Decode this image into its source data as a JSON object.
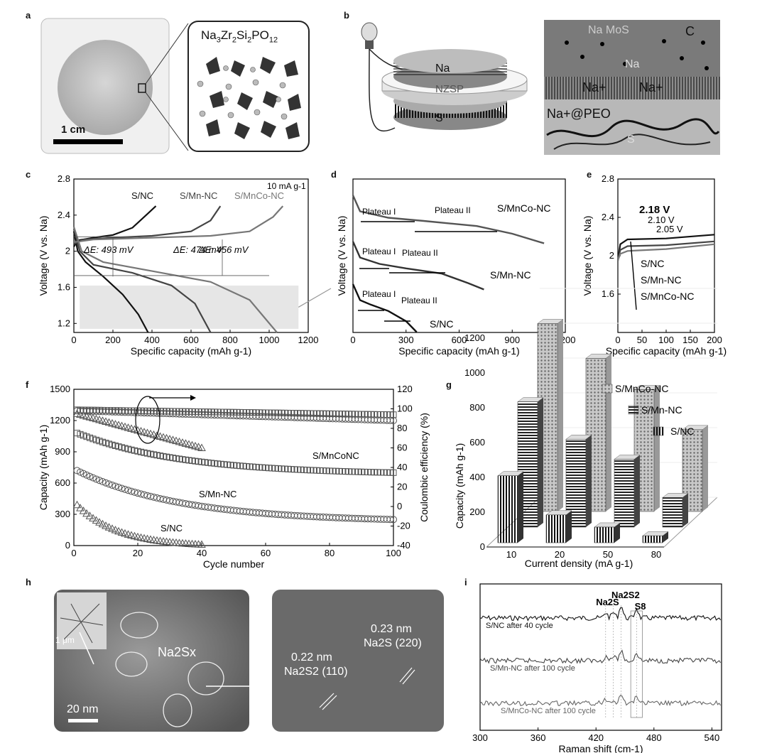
{
  "panels": {
    "a": "a",
    "b": "b",
    "c": "c",
    "d": "d",
    "e": "e",
    "f": "f",
    "g": "g",
    "h": "h",
    "i": "i"
  },
  "panel_a": {
    "formula_parts": [
      "Na",
      "3",
      "Zr",
      "2",
      "Si",
      "2",
      "PO",
      "12"
    ],
    "scale_bar": "1 cm"
  },
  "panel_b": {
    "layers": [
      "Na",
      "NZSP",
      "S"
    ],
    "schematic_labels": [
      "Na MoS",
      "C",
      "Na",
      "Na+",
      "Na+",
      "Na+@PEO",
      "S"
    ]
  },
  "panel_h": {
    "inset_scale": "1 μm",
    "label_nasx": "Na2Sx",
    "scale_bar": "20 nm",
    "spacing1": "0.23 nm",
    "plane1": "Na2S (220)",
    "spacing2": "0.22 nm",
    "plane2": "Na2S2 (110)"
  },
  "chart_data": [
    {
      "id": "c",
      "type": "line",
      "xlabel": "Specific capacity (mAh g-1)",
      "ylabel": "Voltage (V vs. Na)",
      "xlim": [
        0,
        1200
      ],
      "ylim": [
        1.1,
        2.8
      ],
      "xticks": [
        0,
        200,
        400,
        600,
        800,
        1000,
        1200
      ],
      "yticks": [
        1.2,
        1.6,
        2.0,
        2.4,
        2.8
      ],
      "annotation_rate": "10 mA g-1",
      "deltaE": [
        "ΔE: 493 mV",
        "ΔE: 474 mV",
        "ΔE: 456 mV"
      ],
      "series": [
        {
          "name": "S/NC",
          "color": "#111111",
          "charge": [
            [
              0,
              2.05
            ],
            [
              20,
              2.12
            ],
            [
              100,
              2.15
            ],
            [
              200,
              2.18
            ],
            [
              300,
              2.26
            ],
            [
              380,
              2.42
            ],
            [
              420,
              2.5
            ]
          ],
          "discharge": [
            [
              0,
              2.22
            ],
            [
              20,
              2.0
            ],
            [
              60,
              1.88
            ],
            [
              150,
              1.72
            ],
            [
              250,
              1.52
            ],
            [
              330,
              1.3
            ],
            [
              380,
              1.1
            ]
          ]
        },
        {
          "name": "S/Mn-NC",
          "color": "#444444",
          "charge": [
            [
              0,
              2.08
            ],
            [
              50,
              2.13
            ],
            [
              200,
              2.15
            ],
            [
              400,
              2.17
            ],
            [
              600,
              2.22
            ],
            [
              700,
              2.34
            ],
            [
              750,
              2.5
            ]
          ],
          "discharge": [
            [
              0,
              2.25
            ],
            [
              30,
              2.0
            ],
            [
              100,
              1.85
            ],
            [
              300,
              1.76
            ],
            [
              500,
              1.62
            ],
            [
              620,
              1.42
            ],
            [
              700,
              1.1
            ]
          ]
        },
        {
          "name": "S/MnCo-NC",
          "color": "#777777",
          "charge": [
            [
              0,
              2.1
            ],
            [
              100,
              2.13
            ],
            [
              400,
              2.15
            ],
            [
              700,
              2.17
            ],
            [
              900,
              2.22
            ],
            [
              1020,
              2.38
            ],
            [
              1070,
              2.5
            ]
          ],
          "discharge": [
            [
              0,
              2.27
            ],
            [
              40,
              2.0
            ],
            [
              150,
              1.88
            ],
            [
              400,
              1.78
            ],
            [
              700,
              1.66
            ],
            [
              900,
              1.46
            ],
            [
              1040,
              1.1
            ]
          ]
        }
      ]
    },
    {
      "id": "d",
      "type": "line",
      "xlabel": "Specific capacity (mAh g-1)",
      "ylabel": "Voltage (V vs. Na)",
      "xlim": [
        0,
        1200
      ],
      "xticks": [
        0,
        300,
        600,
        900,
        1200
      ],
      "plateau_labels": [
        "Plateau I",
        "Plateau II"
      ],
      "series": [
        {
          "name": "S/MnCo-NC",
          "values": [
            [
              0,
              2.6
            ],
            [
              40,
              2.35
            ],
            [
              200,
              2.25
            ],
            [
              400,
              2.2
            ],
            [
              700,
              2.12
            ],
            [
              900,
              2.0
            ],
            [
              1080,
              1.85
            ]
          ]
        },
        {
          "name": "S/Mn-NC",
          "values": [
            [
              0,
              2.6
            ],
            [
              40,
              2.35
            ],
            [
              150,
              2.25
            ],
            [
              300,
              2.18
            ],
            [
              500,
              2.1
            ],
            [
              650,
              1.95
            ],
            [
              740,
              1.85
            ]
          ]
        },
        {
          "name": "S/NC",
          "values": [
            [
              0,
              2.6
            ],
            [
              40,
              2.35
            ],
            [
              100,
              2.28
            ],
            [
              200,
              2.18
            ],
            [
              300,
              2.02
            ],
            [
              360,
              1.85
            ]
          ]
        }
      ]
    },
    {
      "id": "e",
      "type": "line",
      "xlabel": "Specific capacity (mAh g-1)",
      "ylabel": "Voltage (V vs. Na)",
      "xlim": [
        0,
        200
      ],
      "ylim": [
        1.2,
        2.8
      ],
      "xticks": [
        0,
        50,
        100,
        150,
        200
      ],
      "yticks": [
        1.6,
        2.0,
        2.4,
        2.8
      ],
      "annotations": [
        "2.18 V",
        "2.10 V",
        "2.05 V"
      ],
      "series": [
        {
          "name": "S/NC",
          "values": [
            [
              0,
              1.95
            ],
            [
              5,
              2.12
            ],
            [
              20,
              2.17
            ],
            [
              100,
              2.18
            ],
            [
              200,
              2.22
            ]
          ]
        },
        {
          "name": "S/Mn-NC",
          "values": [
            [
              0,
              1.95
            ],
            [
              5,
              2.06
            ],
            [
              20,
              2.1
            ],
            [
              100,
              2.11
            ],
            [
              200,
              2.15
            ]
          ]
        },
        {
          "name": "S/MnCo-NC",
          "values": [
            [
              0,
              1.95
            ],
            [
              5,
              2.02
            ],
            [
              20,
              2.05
            ],
            [
              100,
              2.07
            ],
            [
              200,
              2.12
            ]
          ]
        }
      ]
    },
    {
      "id": "f",
      "type": "scatter",
      "xlabel": "Cycle number",
      "ylabel": "Capacity (mAh g-1)",
      "y2label": "Coulombic efficiency (%)",
      "xlim": [
        0,
        100
      ],
      "ylim": [
        0,
        1500
      ],
      "y2lim": [
        -40,
        120
      ],
      "xticks": [
        0,
        20,
        40,
        60,
        80,
        100
      ],
      "yticks": [
        0,
        300,
        600,
        900,
        1200,
        1500
      ],
      "y2ticks": [
        -40,
        -20,
        0,
        20,
        40,
        60,
        80,
        100,
        120
      ],
      "series": [
        {
          "name": "S/MnCoNC",
          "marker": "square",
          "start": 1080,
          "end": 700,
          "cycles": 100
        },
        {
          "name": "S/Mn-NC",
          "marker": "circle",
          "start": 720,
          "end": 250,
          "cycles": 100
        },
        {
          "name": "S/NC",
          "marker": "triangle",
          "start": 390,
          "end": 10,
          "cycles": 40
        }
      ],
      "efficiency": [
        {
          "marker": "square",
          "start": 99,
          "end": 94,
          "cycles": 100
        },
        {
          "marker": "circle",
          "start": 98,
          "end": 88,
          "cycles": 100
        },
        {
          "marker": "triangle",
          "start": 95,
          "end": 60,
          "cycles": 40
        }
      ]
    },
    {
      "id": "g",
      "type": "bar",
      "xlabel": "Current density (mA g-1)",
      "ylabel": "Capacity (mAh g-1)",
      "categories": [
        "10",
        "20",
        "50",
        "80"
      ],
      "yticks": [
        0,
        200,
        400,
        600,
        800,
        1000,
        1200
      ],
      "series": [
        {
          "name": "S/NC",
          "values": [
            385,
            160,
            90,
            40
          ]
        },
        {
          "name": "S/Mn-NC",
          "values": [
            720,
            505,
            390,
            170
          ]
        },
        {
          "name": "S/MnCo-NC",
          "values": [
            1080,
            880,
            700,
            470
          ]
        }
      ]
    },
    {
      "id": "i",
      "type": "line",
      "xlabel": "Raman shift (cm-1)",
      "xlim": [
        300,
        550
      ],
      "xticks": [
        300,
        360,
        420,
        480,
        540
      ],
      "peak_labels": [
        "Na2S",
        "Na2S2",
        "S8"
      ],
      "series": [
        {
          "name": "S/NC after 40 cycle"
        },
        {
          "name": "S/Mn-NC after 100 cycle"
        },
        {
          "name": "S/MnCo-NC after 100 cycle"
        }
      ]
    }
  ]
}
